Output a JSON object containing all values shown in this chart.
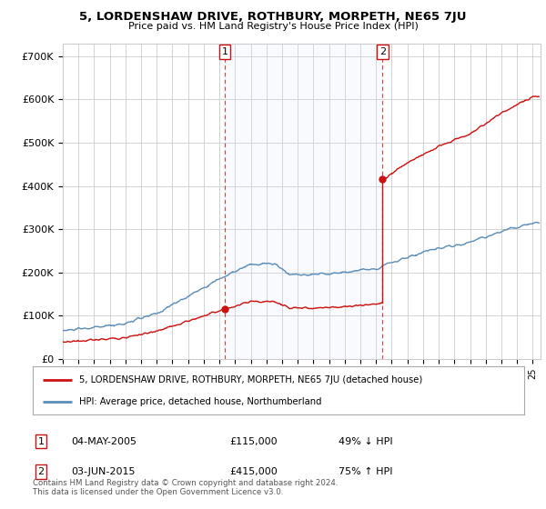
{
  "title": "5, LORDENSHAW DRIVE, ROTHBURY, MORPETH, NE65 7JU",
  "subtitle": "Price paid vs. HM Land Registry's House Price Index (HPI)",
  "ylabel_ticks": [
    "£0",
    "£100K",
    "£200K",
    "£300K",
    "£400K",
    "£500K",
    "£600K",
    "£700K"
  ],
  "ytick_vals": [
    0,
    100000,
    200000,
    300000,
    400000,
    500000,
    600000,
    700000
  ],
  "ylim": [
    0,
    730000
  ],
  "xlim_start": 1995.0,
  "xlim_end": 2025.5,
  "sale1_date": 2005.34,
  "sale1_price": 115000,
  "sale1_label": "1",
  "sale2_date": 2015.42,
  "sale2_price": 415000,
  "sale2_label": "2",
  "hpi_color": "#5b8db8",
  "hpi_fill_color": "#d9e8f5",
  "price_color": "#cc1111",
  "vline_color": "#cc1111",
  "grid_color": "#cccccc",
  "legend_line1": "5, LORDENSHAW DRIVE, ROTHBURY, MORPETH, NE65 7JU (detached house)",
  "legend_line2": "HPI: Average price, detached house, Northumberland",
  "table_row1": [
    "1",
    "04-MAY-2005",
    "£115,000",
    "49% ↓ HPI"
  ],
  "table_row2": [
    "2",
    "03-JUN-2015",
    "£415,000",
    "75% ↑ HPI"
  ],
  "footnote": "Contains HM Land Registry data © Crown copyright and database right 2024.\nThis data is licensed under the Open Government Licence v3.0.",
  "background_color": "#ffffff"
}
